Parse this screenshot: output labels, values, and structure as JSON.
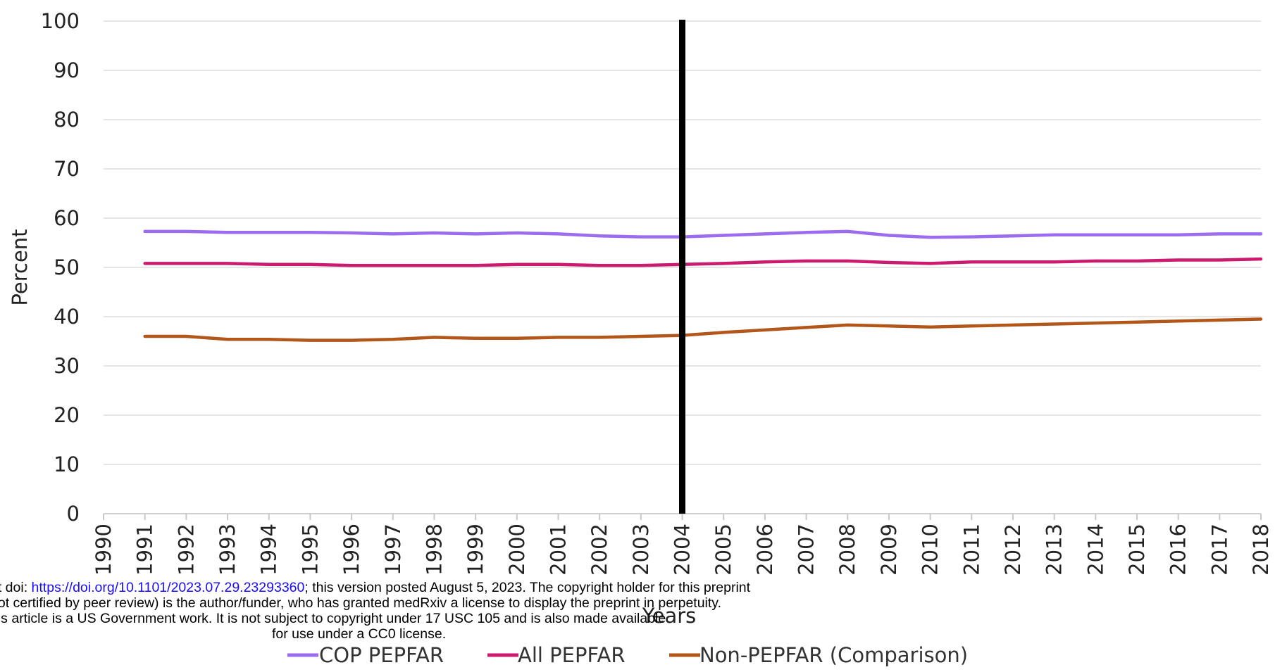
{
  "colors": {
    "cop_pepfar": "#9b6cf0",
    "all_pepfar": "#cc1a6e",
    "non_pepfar": "#b2561a",
    "intervention_line": "#000000",
    "gridline": "#e6e6e6",
    "link": "#1a0dff"
  },
  "notice": {
    "line1_prefix": "nt doi: ",
    "doi_link": "https://doi.org/10.1101/2023.07.29.23293360",
    "line1_suffix": "; this version posted August 5, 2023. The copyright holder for this preprint",
    "line2": " not certified by peer review) is the author/funder, who has granted medRxiv a license to display the preprint in perpetuity.",
    "line3": "his article is a US Government work. It is not subject to copyright under 17 USC 105 and is also made available",
    "line4": "for use under a CC0 license."
  },
  "chart_data": {
    "type": "line",
    "title": "",
    "xlabel": "Years",
    "ylabel": "Percent",
    "ylim": [
      0,
      100
    ],
    "yticks": [
      0,
      10,
      20,
      30,
      40,
      50,
      60,
      70,
      80,
      90,
      100
    ],
    "xlim": [
      1990,
      2018
    ],
    "x": [
      1991,
      1992,
      1993,
      1994,
      1995,
      1996,
      1997,
      1998,
      1999,
      2000,
      2001,
      2002,
      2003,
      2004,
      2005,
      2006,
      2007,
      2008,
      2009,
      2010,
      2011,
      2012,
      2013,
      2014,
      2015,
      2016,
      2017,
      2018
    ],
    "xtick_labels": [
      "1990",
      "1991",
      "1992",
      "1993",
      "1994",
      "1995",
      "1996",
      "1997",
      "1998",
      "1999",
      "2000",
      "2001",
      "2002",
      "2003",
      "2004",
      "2005",
      "2006",
      "2007",
      "2008",
      "2009",
      "2010",
      "2011",
      "2012",
      "2013",
      "2014",
      "2015",
      "2016",
      "2017",
      "2018"
    ],
    "intervention_year": 2004,
    "grid": true,
    "legend_position": "bottom",
    "series": [
      {
        "name": "COP PEPFAR",
        "color": "#9b6cf0",
        "values": [
          57.3,
          57.3,
          57.1,
          57.1,
          57.1,
          57.0,
          56.8,
          57.0,
          56.8,
          57.0,
          56.8,
          56.4,
          56.2,
          56.2,
          56.5,
          56.8,
          57.1,
          57.3,
          56.5,
          56.1,
          56.2,
          56.4,
          56.6,
          56.6,
          56.6,
          56.6,
          56.8,
          56.8
        ]
      },
      {
        "name": "All PEPFAR",
        "color": "#cc1a6e",
        "values": [
          50.8,
          50.8,
          50.8,
          50.6,
          50.6,
          50.4,
          50.4,
          50.4,
          50.4,
          50.6,
          50.6,
          50.4,
          50.4,
          50.6,
          50.8,
          51.1,
          51.3,
          51.3,
          51.0,
          50.8,
          51.1,
          51.1,
          51.1,
          51.3,
          51.3,
          51.5,
          51.5,
          51.7
        ]
      },
      {
        "name": "Non-PEPFAR (Comparison)",
        "color": "#b2561a",
        "values": [
          36.0,
          36.0,
          35.4,
          35.4,
          35.2,
          35.2,
          35.4,
          35.8,
          35.6,
          35.6,
          35.8,
          35.8,
          36.0,
          36.2,
          36.8,
          37.3,
          37.8,
          38.3,
          38.1,
          37.9,
          38.1,
          38.3,
          38.5,
          38.7,
          38.9,
          39.1,
          39.3,
          39.5
        ]
      }
    ]
  }
}
